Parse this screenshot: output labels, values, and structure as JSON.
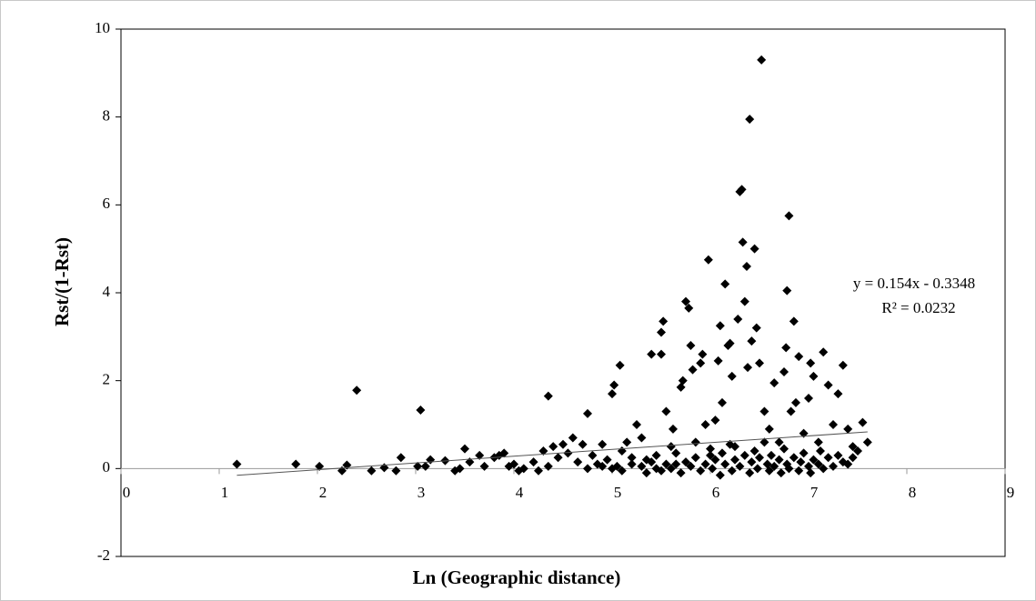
{
  "chart_data": {
    "type": "scatter",
    "x_label": "Ln (Geographic distance)",
    "y_label": "Rst/(1-Rst)",
    "annotations": [
      "y = 0.154x - 0.3348",
      "R² = 0.0232"
    ],
    "color": "#000000",
    "xlim": [
      0,
      9
    ],
    "xticks": [
      0,
      1,
      2,
      3,
      4,
      5,
      6,
      7,
      8,
      9
    ],
    "ylim": [
      -2,
      10
    ],
    "yticks": [
      -2,
      0,
      2,
      4,
      6,
      8,
      10
    ],
    "trendline": {
      "x": [
        1.18,
        7.6
      ],
      "y": [
        -0.153,
        0.835
      ]
    },
    "x": [
      1.18,
      1.78,
      2.02,
      2.25,
      2.3,
      2.4,
      2.55,
      2.68,
      2.8,
      2.85,
      3.02,
      3.05,
      3.1,
      3.15,
      3.3,
      3.4,
      3.45,
      3.5,
      3.55,
      3.65,
      3.7,
      3.8,
      3.85,
      3.9,
      3.95,
      4.0,
      4.05,
      4.1,
      4.2,
      4.25,
      4.3,
      4.35,
      4.35,
      4.4,
      4.45,
      4.5,
      4.55,
      4.6,
      4.65,
      4.7,
      4.75,
      4.75,
      4.8,
      4.85,
      4.9,
      4.95,
      5.0,
      5.02,
      5.05,
      5.08,
      5.1,
      5.15,
      5.2,
      5.25,
      5.3,
      5.35,
      5.4,
      5.45,
      5.5,
      5.5,
      5.52,
      5.55,
      5.6,
      5.62,
      5.65,
      5.7,
      5.72,
      5.75,
      5.78,
      5.8,
      5.82,
      5.85,
      5.9,
      5.92,
      5.95,
      5.98,
      6.0,
      6.05,
      6.08,
      6.1,
      6.12,
      6.15,
      6.18,
      6.2,
      6.22,
      6.25,
      6.28,
      6.3,
      6.32,
      6.33,
      6.35,
      6.37,
      6.38,
      6.4,
      6.42,
      6.45,
      6.47,
      6.5,
      6.52,
      6.55,
      6.6,
      6.65,
      6.7,
      6.75,
      6.77,
      6.78,
      6.8,
      6.82,
      6.85,
      6.87,
      6.9,
      6.95,
      7.0,
      7.02,
      7.05,
      7.1,
      7.15,
      7.2,
      7.25,
      7.3,
      7.35,
      7.4,
      7.45,
      7.5,
      7.55,
      7.6,
      5.3,
      5.35,
      5.4,
      5.45,
      5.5,
      5.55,
      5.6,
      5.65,
      5.7,
      5.75,
      5.8,
      5.85,
      5.9,
      5.95,
      6.0,
      6.02,
      6.05,
      6.1,
      6.12,
      6.15,
      6.2,
      6.22,
      6.25,
      6.3,
      6.35,
      6.4,
      6.42,
      6.45,
      6.48,
      6.5,
      6.55,
      6.58,
      6.6,
      6.62,
      6.65,
      6.7,
      6.72,
      6.75,
      6.78,
      6.8,
      6.85,
      6.9,
      6.92,
      6.95,
      7.0,
      7.02,
      7.05,
      7.1,
      7.12,
      7.15,
      7.2,
      7.25,
      7.3,
      7.35,
      7.4,
      7.45,
      5.0,
      5.1,
      5.2,
      4.9
    ],
    "values": [
      0.1,
      0.1,
      0.05,
      -0.05,
      0.08,
      1.78,
      -0.05,
      0.02,
      -0.05,
      0.25,
      0.05,
      1.33,
      0.05,
      0.2,
      0.18,
      -0.05,
      0.0,
      0.45,
      0.15,
      0.3,
      0.05,
      0.25,
      0.3,
      0.35,
      0.05,
      0.1,
      -0.05,
      0.0,
      0.15,
      -0.05,
      0.4,
      1.65,
      0.05,
      0.5,
      0.25,
      0.55,
      0.35,
      0.7,
      0.15,
      0.55,
      1.25,
      0.0,
      0.3,
      0.1,
      0.55,
      0.2,
      1.7,
      1.9,
      0.05,
      2.35,
      0.4,
      0.6,
      0.1,
      1.0,
      0.7,
      0.2,
      2.6,
      0.0,
      2.6,
      3.1,
      3.35,
      1.3,
      0.5,
      0.9,
      0.1,
      1.85,
      2.0,
      3.8,
      3.65,
      2.8,
      2.25,
      0.6,
      2.4,
      2.6,
      1.0,
      4.75,
      0.3,
      1.1,
      2.45,
      3.25,
      1.5,
      4.2,
      2.8,
      2.85,
      2.1,
      0.5,
      3.4,
      6.3,
      6.35,
      5.15,
      3.8,
      4.6,
      2.3,
      7.95,
      2.9,
      5.0,
      3.2,
      2.4,
      9.3,
      1.3,
      0.9,
      1.95,
      0.6,
      2.2,
      2.75,
      4.05,
      5.75,
      1.3,
      3.35,
      1.5,
      2.55,
      0.8,
      1.6,
      2.4,
      2.1,
      0.6,
      2.65,
      1.9,
      1.0,
      1.7,
      2.35,
      0.9,
      0.5,
      0.4,
      1.05,
      0.6,
      0.05,
      -0.1,
      0.15,
      0.3,
      -0.05,
      0.1,
      0.0,
      0.35,
      -0.1,
      0.15,
      0.05,
      0.25,
      -0.05,
      0.1,
      0.45,
      0.0,
      0.2,
      -0.15,
      0.35,
      0.1,
      0.55,
      -0.05,
      0.2,
      0.05,
      0.3,
      -0.1,
      0.15,
      0.4,
      0.0,
      0.25,
      0.6,
      0.1,
      -0.05,
      0.3,
      0.05,
      0.2,
      -0.1,
      0.45,
      0.1,
      0.0,
      0.25,
      -0.05,
      0.15,
      0.35,
      0.05,
      -0.1,
      0.2,
      0.1,
      0.4,
      0.0,
      0.25,
      0.05,
      0.3,
      0.15,
      0.1,
      0.25,
      0.0,
      -0.05,
      0.25,
      0.05
    ]
  }
}
